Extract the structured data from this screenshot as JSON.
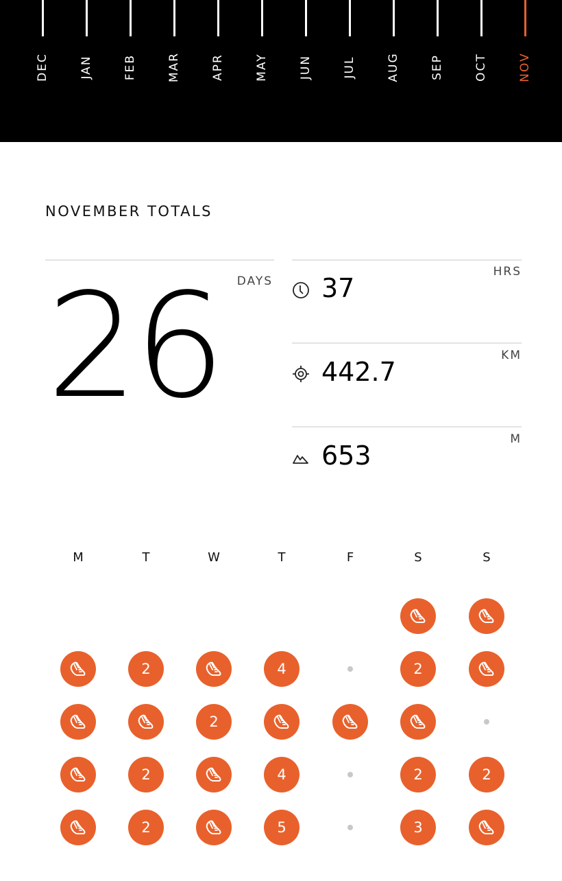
{
  "months": {
    "items": [
      "DEC",
      "JAN",
      "FEB",
      "MAR",
      "APR",
      "MAY",
      "JUN",
      "JUL",
      "AUG",
      "SEP",
      "OCT",
      "NOV"
    ],
    "active": "NOV"
  },
  "totals": {
    "title": "NOVEMBER TOTALS",
    "days": {
      "value": "26",
      "unit": "DAYS"
    },
    "stats": [
      {
        "icon": "clock-icon",
        "value": "37",
        "unit": "HRS"
      },
      {
        "icon": "target-icon",
        "value": "442.7",
        "unit": "KM"
      },
      {
        "icon": "mountain-icon",
        "value": "653",
        "unit": "M"
      }
    ]
  },
  "calendar": {
    "weekdays": [
      "M",
      "T",
      "W",
      "T",
      "F",
      "S",
      "S"
    ],
    "rows": [
      [
        null,
        null,
        null,
        null,
        null,
        "shoe",
        "shoe"
      ],
      [
        "shoe",
        "2",
        "shoe",
        "4",
        "dot",
        "2",
        "shoe"
      ],
      [
        "shoe",
        "shoe",
        "2",
        "shoe",
        "shoe",
        "shoe",
        "dot"
      ],
      [
        "shoe",
        "2",
        "shoe",
        "4",
        "dot",
        "2",
        "2"
      ],
      [
        "shoe",
        "2",
        "shoe",
        "5",
        "dot",
        "3",
        "shoe"
      ]
    ]
  },
  "colors": {
    "accent": "#e8612c",
    "band": "#000000",
    "rest_dot": "#c8c8c8"
  }
}
